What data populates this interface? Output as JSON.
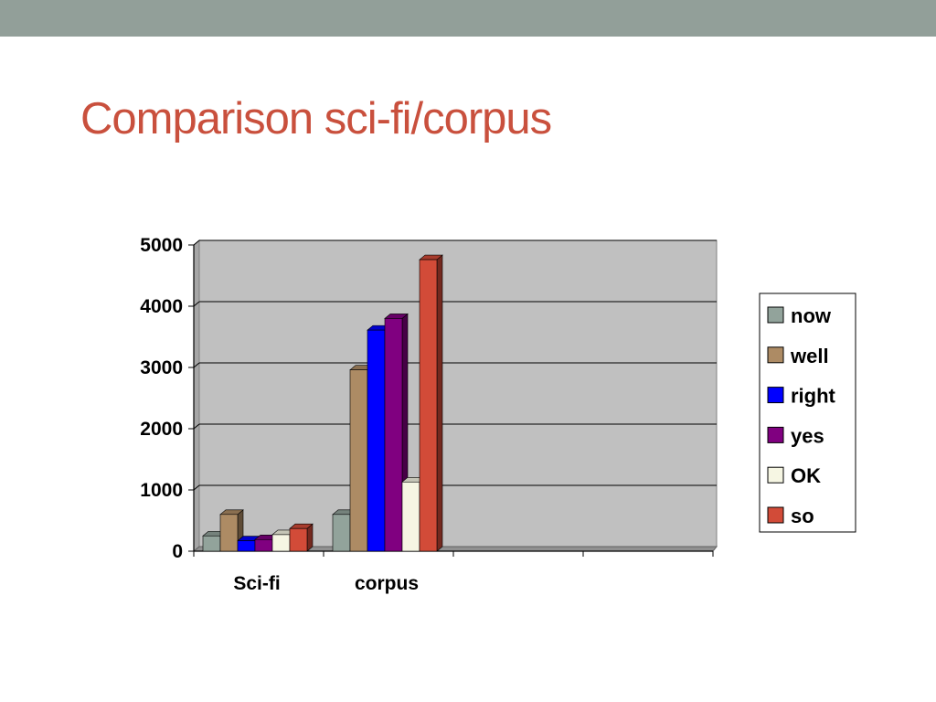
{
  "slide": {
    "title": "Comparison sci-fi/corpus"
  },
  "chart_data": {
    "type": "bar",
    "title": "",
    "xlabel": "",
    "ylabel": "",
    "ylim": [
      0,
      5000
    ],
    "yticks": [
      0,
      1000,
      2000,
      3000,
      4000,
      5000
    ],
    "categories": [
      "Sci-fi",
      "corpus",
      "",
      ""
    ],
    "grid": true,
    "legend_position": "right",
    "style": "3d-clustered",
    "series": [
      {
        "name": "now",
        "color": "#92a39b",
        "values": [
          250,
          600,
          null,
          null
        ]
      },
      {
        "name": "well",
        "color": "#ad8b64",
        "values": [
          600,
          2960,
          null,
          null
        ]
      },
      {
        "name": "right",
        "color": "#0000ff",
        "values": [
          170,
          3610,
          null,
          null
        ]
      },
      {
        "name": "yes",
        "color": "#800080",
        "values": [
          190,
          3800,
          null,
          null
        ]
      },
      {
        "name": "OK",
        "color": "#f6f6e3",
        "values": [
          270,
          1130,
          null,
          null
        ]
      },
      {
        "name": "so",
        "color": "#d24b38",
        "values": [
          370,
          4760,
          null,
          null
        ]
      }
    ]
  }
}
